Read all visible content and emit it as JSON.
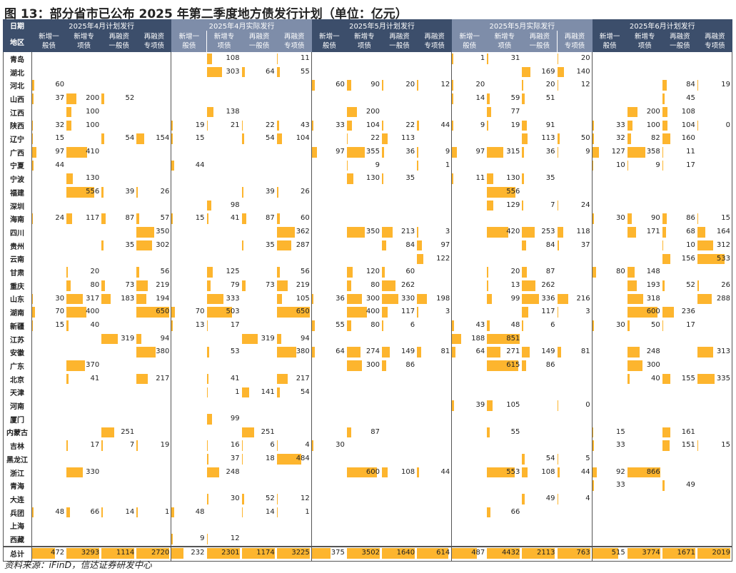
{
  "title": "图 13：部分省市已公布 2025 年第二季度地方债发行计划（单位：亿元）",
  "source": "资料来源：iFinD，信达证券研发中心",
  "header": {
    "row1_label": "日期",
    "row2_label": "地区",
    "groups": [
      {
        "label": "2025年4月计划发行",
        "color": "#3C4E6B"
      },
      {
        "label": "2025年4月实际发行",
        "color": "#7E8DA9"
      },
      {
        "label": "2025年5月计划发行",
        "color": "#3C4E6B"
      },
      {
        "label": "2025年5月实际发行",
        "color": "#7E8DA9"
      },
      {
        "label": "2025年6月计划发行",
        "color": "#3C4E6B"
      }
    ],
    "subcolumns": [
      "新增一\n般债",
      "新增专\n项债",
      "再融资\n一般债",
      "再融资\n专项债"
    ]
  },
  "bar_color": "#FDB52E",
  "bar_scale_max": 650,
  "regions": [
    "青岛",
    "湖北",
    "河北",
    "山西",
    "江西",
    "陕西",
    "辽宁",
    "广西",
    "宁夏",
    "宁波",
    "福建",
    "深圳",
    "海南",
    "四川",
    "贵州",
    "云南",
    "甘肃",
    "重庆",
    "山东",
    "湖南",
    "新疆",
    "江苏",
    "安徽",
    "广东",
    "北京",
    "天津",
    "河南",
    "厦门",
    "内蒙古",
    "吉林",
    "黑龙江",
    "浙江",
    "青海",
    "大连",
    "兵团",
    "上海",
    "西藏"
  ],
  "rows": [
    [
      null,
      null,
      null,
      null,
      null,
      108,
      null,
      11,
      null,
      null,
      null,
      null,
      1,
      31,
      null,
      20,
      null,
      null,
      null,
      null
    ],
    [
      null,
      null,
      null,
      null,
      null,
      303,
      64,
      55,
      null,
      null,
      null,
      null,
      null,
      null,
      169,
      140,
      null,
      null,
      null,
      null
    ],
    [
      60,
      null,
      null,
      null,
      null,
      null,
      null,
      null,
      60,
      90,
      20,
      12,
      20,
      null,
      20,
      12,
      null,
      null,
      84,
      19
    ],
    [
      37,
      200,
      52,
      null,
      null,
      null,
      null,
      null,
      null,
      null,
      null,
      null,
      14,
      59,
      51,
      null,
      null,
      null,
      45,
      null
    ],
    [
      null,
      100,
      null,
      null,
      null,
      138,
      null,
      null,
      null,
      200,
      null,
      null,
      null,
      77,
      null,
      null,
      null,
      200,
      108,
      null
    ],
    [
      32,
      100,
      null,
      null,
      19,
      21,
      22,
      43,
      33,
      104,
      22,
      44,
      9,
      19,
      91,
      null,
      33,
      100,
      104,
      0
    ],
    [
      15,
      null,
      54,
      154,
      15,
      null,
      54,
      104,
      null,
      22,
      113,
      null,
      null,
      null,
      113,
      50,
      32,
      82,
      160,
      null
    ],
    [
      97,
      410,
      null,
      null,
      null,
      null,
      null,
      null,
      97,
      355,
      36,
      9,
      97,
      315,
      36,
      9,
      127,
      358,
      11,
      null
    ],
    [
      44,
      null,
      null,
      null,
      44,
      null,
      null,
      null,
      null,
      9,
      null,
      1,
      null,
      null,
      null,
      null,
      10,
      9,
      17,
      null
    ],
    [
      null,
      130,
      null,
      null,
      null,
      null,
      null,
      null,
      null,
      130,
      35,
      null,
      11,
      130,
      35,
      null,
      null,
      null,
      null,
      null
    ],
    [
      null,
      556,
      39,
      26,
      null,
      null,
      39,
      26,
      null,
      null,
      null,
      null,
      null,
      556,
      null,
      null,
      null,
      null,
      null,
      null
    ],
    [
      null,
      null,
      null,
      null,
      null,
      98,
      null,
      null,
      null,
      null,
      null,
      null,
      null,
      129,
      7,
      24,
      null,
      null,
      null,
      null
    ],
    [
      24,
      117,
      87,
      57,
      15,
      41,
      87,
      60,
      null,
      null,
      null,
      null,
      null,
      null,
      null,
      null,
      30,
      90,
      86,
      15
    ],
    [
      null,
      null,
      null,
      350,
      null,
      null,
      null,
      362,
      null,
      350,
      213,
      3,
      null,
      420,
      253,
      118,
      null,
      171,
      68,
      164
    ],
    [
      null,
      null,
      35,
      302,
      null,
      null,
      35,
      287,
      null,
      null,
      84,
      97,
      null,
      null,
      84,
      37,
      null,
      null,
      10,
      312
    ],
    [
      null,
      null,
      null,
      null,
      null,
      null,
      null,
      null,
      null,
      null,
      null,
      122,
      null,
      null,
      null,
      null,
      null,
      null,
      156,
      533
    ],
    [
      null,
      20,
      null,
      56,
      null,
      125,
      null,
      56,
      null,
      120,
      60,
      null,
      null,
      20,
      87,
      null,
      80,
      148,
      null,
      null
    ],
    [
      null,
      80,
      73,
      219,
      null,
      79,
      73,
      219,
      null,
      80,
      262,
      null,
      null,
      13,
      262,
      null,
      null,
      193,
      52,
      26
    ],
    [
      30,
      317,
      183,
      194,
      null,
      333,
      null,
      105,
      36,
      300,
      330,
      198,
      null,
      99,
      336,
      216,
      null,
      318,
      null,
      288
    ],
    [
      70,
      400,
      null,
      650,
      70,
      503,
      null,
      650,
      null,
      400,
      117,
      3,
      null,
      null,
      117,
      3,
      null,
      600,
      236,
      null
    ],
    [
      15,
      40,
      null,
      null,
      13,
      17,
      null,
      null,
      55,
      80,
      6,
      null,
      43,
      48,
      6,
      null,
      30,
      50,
      17,
      null
    ],
    [
      null,
      null,
      319,
      94,
      null,
      null,
      319,
      94,
      null,
      null,
      null,
      null,
      188,
      851,
      null,
      null,
      null,
      null,
      null,
      null
    ],
    [
      null,
      null,
      null,
      380,
      null,
      53,
      null,
      380,
      64,
      274,
      149,
      81,
      64,
      271,
      149,
      81,
      null,
      248,
      null,
      313
    ],
    [
      null,
      370,
      null,
      null,
      null,
      null,
      null,
      null,
      null,
      300,
      86,
      null,
      null,
      615,
      86,
      null,
      null,
      300,
      null,
      null
    ],
    [
      null,
      41,
      null,
      217,
      null,
      41,
      null,
      217,
      null,
      null,
      null,
      null,
      null,
      null,
      null,
      null,
      null,
      40,
      155,
      335
    ],
    [
      null,
      null,
      null,
      null,
      null,
      1,
      141,
      54,
      null,
      null,
      null,
      null,
      null,
      null,
      null,
      null,
      null,
      null,
      null,
      null
    ],
    [
      null,
      null,
      null,
      null,
      null,
      null,
      null,
      null,
      null,
      null,
      null,
      null,
      39,
      105,
      null,
      0,
      null,
      null,
      null,
      null
    ],
    [
      null,
      null,
      null,
      null,
      null,
      99,
      null,
      null,
      null,
      null,
      null,
      null,
      null,
      null,
      null,
      null,
      null,
      null,
      null,
      null
    ],
    [
      null,
      null,
      251,
      null,
      null,
      null,
      251,
      null,
      null,
      87,
      null,
      null,
      null,
      55,
      null,
      null,
      15,
      null,
      161,
      null
    ],
    [
      null,
      17,
      7,
      19,
      null,
      16,
      6,
      4,
      30,
      null,
      null,
      null,
      null,
      null,
      null,
      null,
      33,
      null,
      151,
      15
    ],
    [
      null,
      null,
      null,
      null,
      null,
      37,
      18,
      484,
      null,
      null,
      null,
      null,
      null,
      null,
      54,
      5,
      null,
      null,
      null,
      null
    ],
    [
      null,
      330,
      null,
      null,
      null,
      248,
      null,
      null,
      null,
      600,
      108,
      44,
      null,
      553,
      108,
      44,
      92,
      866,
      null,
      null
    ],
    [
      null,
      null,
      null,
      null,
      null,
      null,
      null,
      null,
      null,
      null,
      null,
      null,
      null,
      null,
      null,
      null,
      33,
      null,
      49,
      null
    ],
    [
      null,
      null,
      null,
      null,
      null,
      30,
      52,
      12,
      null,
      null,
      null,
      null,
      null,
      null,
      49,
      4,
      null,
      null,
      null,
      null
    ],
    [
      48,
      66,
      14,
      1,
      48,
      null,
      14,
      1,
      null,
      null,
      null,
      null,
      null,
      66,
      null,
      null,
      null,
      null,
      null,
      null
    ],
    [
      null,
      null,
      null,
      null,
      null,
      null,
      null,
      null,
      null,
      null,
      null,
      null,
      null,
      null,
      null,
      null,
      null,
      null,
      null,
      null
    ],
    [
      null,
      null,
      null,
      null,
      9,
      12,
      null,
      null,
      null,
      null,
      null,
      null,
      null,
      null,
      null,
      null,
      null,
      null,
      null,
      null
    ]
  ],
  "total": {
    "label": "总计",
    "values": [
      472,
      3293,
      1114,
      2720,
      232,
      2301,
      1174,
      3225,
      375,
      3502,
      1640,
      614,
      487,
      4432,
      2113,
      763,
      515,
      3774,
      1671,
      2019
    ]
  }
}
